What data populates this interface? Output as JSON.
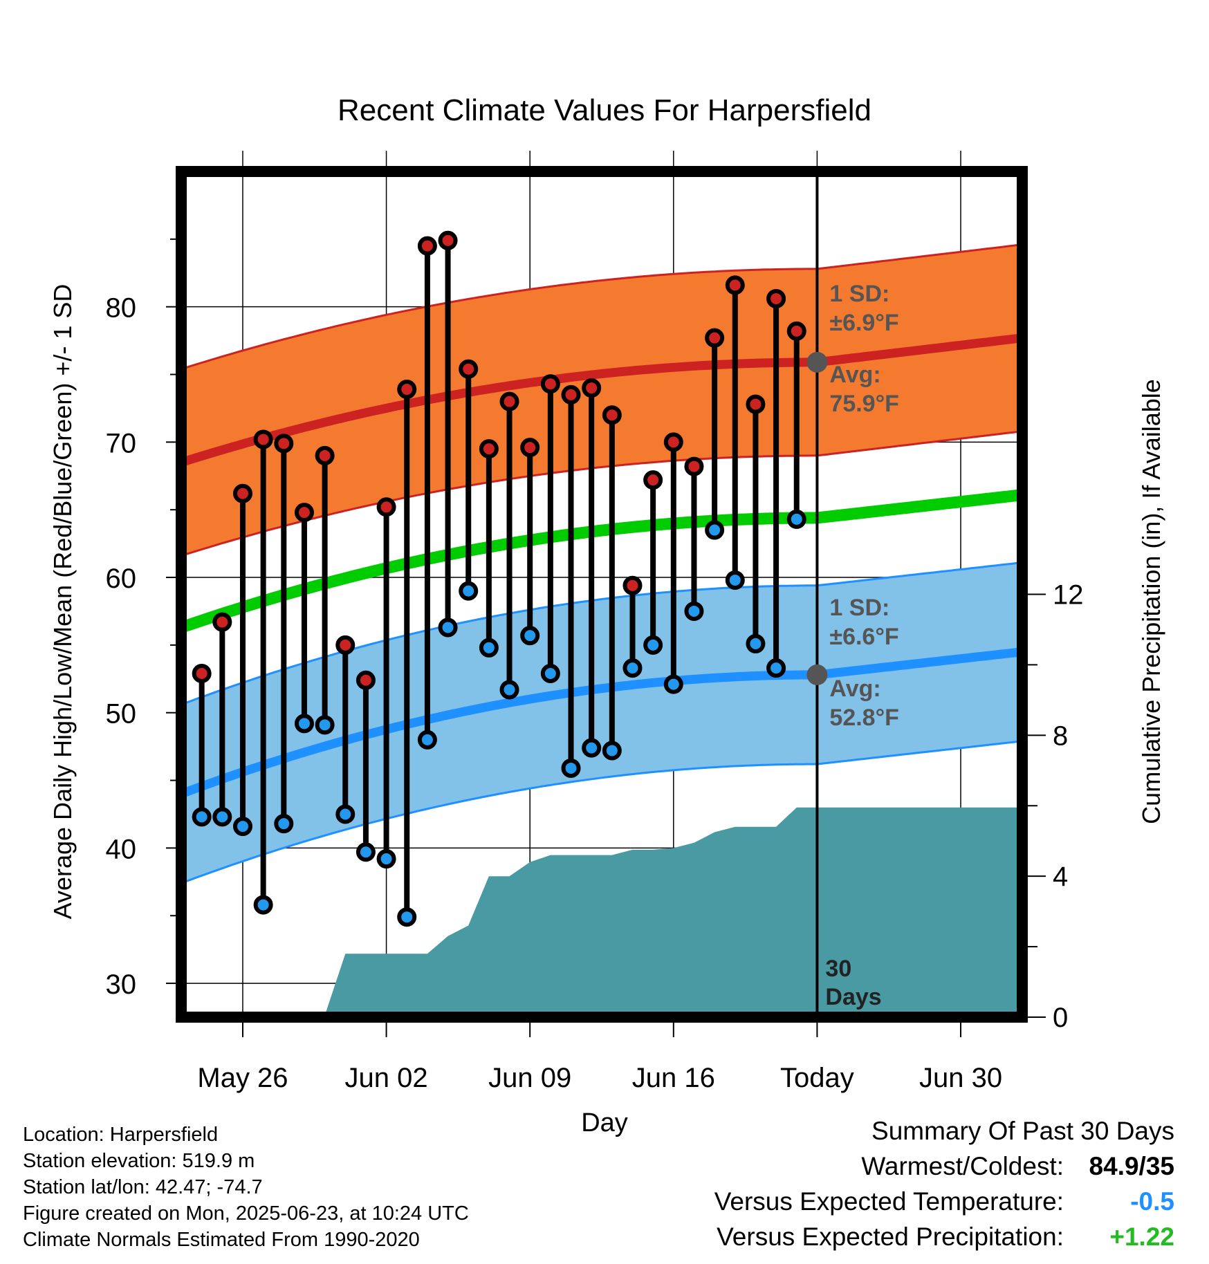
{
  "chart_data": {
    "type": "line",
    "title": "Recent Climate Values For Harpersfield",
    "xlabel": "Day",
    "ylabel": "Average Daily High/Low/Mean (Red/Blue/Green) +/- 1 SD",
    "y2label": "Cumulative Precipitation (in), If Available",
    "x_range": [
      "2025-05-23",
      "2025-07-03"
    ],
    "ylim": [
      27.5,
      90
    ],
    "y2lim": [
      0,
      24
    ],
    "yticks": [
      30,
      40,
      50,
      60,
      70,
      80
    ],
    "y2ticks": [
      0,
      4,
      8,
      12
    ],
    "xtick_dates": [
      "2025-05-26",
      "2025-06-02",
      "2025-06-09",
      "2025-06-16",
      "2025-06-23",
      "2025-06-30"
    ],
    "xtick_labels": [
      "May 26",
      "Jun 02",
      "Jun 09",
      "Jun 16",
      "Today",
      "Jun 30"
    ],
    "today": "2025-06-23",
    "period_label": "30 Days",
    "dates": [
      "2025-05-24",
      "2025-05-25",
      "2025-05-26",
      "2025-05-27",
      "2025-05-28",
      "2025-05-29",
      "2025-05-30",
      "2025-05-31",
      "2025-06-01",
      "2025-06-02",
      "2025-06-03",
      "2025-06-04",
      "2025-06-05",
      "2025-06-06",
      "2025-06-07",
      "2025-06-08",
      "2025-06-09",
      "2025-06-10",
      "2025-06-11",
      "2025-06-12",
      "2025-06-13",
      "2025-06-14",
      "2025-06-15",
      "2025-06-16",
      "2025-06-17",
      "2025-06-18",
      "2025-06-19",
      "2025-06-20",
      "2025-06-21",
      "2025-06-22"
    ],
    "series": [
      {
        "name": "High",
        "color": "#cc2222",
        "values": [
          52.9,
          56.7,
          66.2,
          70.2,
          69.9,
          64.8,
          69.0,
          55.0,
          52.4,
          65.2,
          73.9,
          84.5,
          84.9,
          75.4,
          69.5,
          73.0,
          69.6,
          74.3,
          73.5,
          74.0,
          72.0,
          59.4,
          67.2,
          70.0,
          68.2,
          77.7,
          81.6,
          72.8,
          80.6,
          78.2
        ]
      },
      {
        "name": "Low",
        "color": "#2299ee",
        "values": [
          42.3,
          42.3,
          41.6,
          35.8,
          41.8,
          49.2,
          49.1,
          42.5,
          39.7,
          39.2,
          34.9,
          48.0,
          56.3,
          59.0,
          54.8,
          51.7,
          55.7,
          52.9,
          45.9,
          47.4,
          47.2,
          53.3,
          55.0,
          52.1,
          57.5,
          63.5,
          59.8,
          55.1,
          53.3,
          64.3
        ]
      }
    ],
    "normals": {
      "dates": [
        "2025-05-23",
        "2025-06-23",
        "2025-07-03"
      ],
      "high_avg": [
        68.5,
        75.9,
        77.7
      ],
      "high_sd": 6.9,
      "low_avg": [
        44.0,
        52.8,
        54.5
      ],
      "low_sd": 6.6,
      "mean_avg": [
        56.3,
        64.4,
        66.1
      ],
      "high_color": "#cc2222",
      "high_band_color": "#f47a30",
      "low_color": "#1e90ff",
      "low_band_color": "#82c1e8",
      "mean_color": "#00cc00"
    },
    "precip": {
      "color": "#4a9aa3",
      "dates": [
        "2025-05-23",
        "2025-05-24",
        "2025-05-25",
        "2025-05-26",
        "2025-05-27",
        "2025-05-28",
        "2025-05-29",
        "2025-05-30",
        "2025-05-31",
        "2025-06-01",
        "2025-06-02",
        "2025-06-03",
        "2025-06-04",
        "2025-06-05",
        "2025-06-06",
        "2025-06-07",
        "2025-06-08",
        "2025-06-09",
        "2025-06-10",
        "2025-06-11",
        "2025-06-12",
        "2025-06-13",
        "2025-06-14",
        "2025-06-15",
        "2025-06-16",
        "2025-06-17",
        "2025-06-18",
        "2025-06-19",
        "2025-06-20",
        "2025-06-21",
        "2025-06-22",
        "2025-07-03"
      ],
      "values": [
        0,
        0,
        0.05,
        0.05,
        0.05,
        0.05,
        0.05,
        0.05,
        1.8,
        1.8,
        1.8,
        1.8,
        1.8,
        2.3,
        2.6,
        4.0,
        4.0,
        4.4,
        4.6,
        4.6,
        4.6,
        4.6,
        4.75,
        4.75,
        4.8,
        4.95,
        5.25,
        5.4,
        5.4,
        5.4,
        5.95,
        5.95
      ]
    },
    "annotations": {
      "high_sd_label": "1 SD:",
      "high_sd_value": "±6.9°F",
      "high_avg_label": "Avg:",
      "high_avg_value": "75.9°F",
      "low_sd_label": "1 SD:",
      "low_sd_value": "±6.6°F",
      "low_avg_label": "Avg:",
      "low_avg_value": "52.8°F"
    }
  },
  "info": {
    "location": "Location: Harpersfield",
    "elevation": "Station elevation: 519.9 m",
    "latlon": "Station lat/lon: 42.47; -74.7",
    "created": "Figure created on Mon, 2025-06-23, at 10:24 UTC",
    "normals": "Climate Normals Estimated From 1990-2020"
  },
  "summary": {
    "title": "Summary Of Past 30 Days",
    "warmest_label": "Warmest/Coldest:",
    "warmest_value": "84.9/35",
    "temp_label": "Versus Expected Temperature:",
    "temp_value": "-0.5",
    "temp_color": "#1e90ff",
    "precip_label": "Versus Expected Precipitation:",
    "precip_value": "+1.22",
    "precip_color": "#22bb22"
  }
}
